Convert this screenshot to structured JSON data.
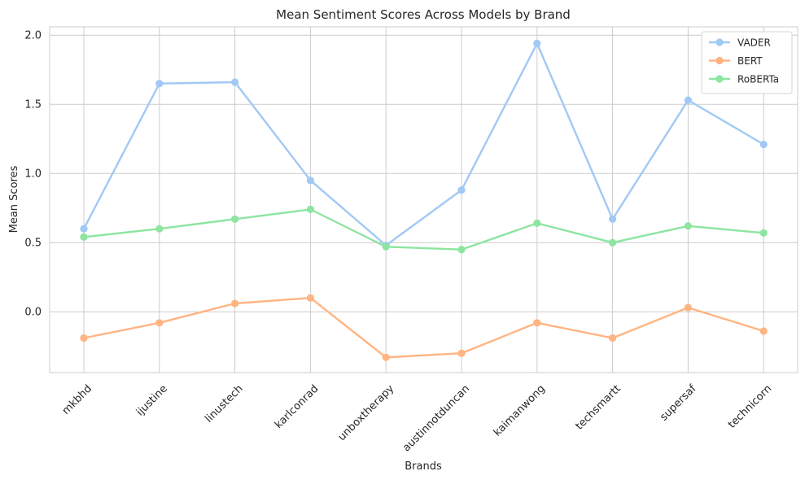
{
  "chart_data": {
    "type": "line",
    "title": "Mean Sentiment Scores Across Models by Brand",
    "xlabel": "Brands",
    "ylabel": "Mean Scores",
    "categories": [
      "mkbhd",
      "ijustine",
      "linustech",
      "karlconrad",
      "unboxtherapy",
      "austinnotduncan",
      "kaimanwong",
      "techsmartt",
      "supersaf",
      "technicorn"
    ],
    "ylim": [
      -0.44,
      2.06
    ],
    "yticks": [
      "0.0",
      "0.5",
      "1.0",
      "1.5",
      "2.0"
    ],
    "grid": true,
    "legend_position": "top-right",
    "series": [
      {
        "name": "VADER",
        "color": "#a1c9f4",
        "values": [
          0.6,
          1.65,
          1.66,
          0.95,
          0.48,
          0.88,
          1.94,
          0.67,
          1.53,
          1.21
        ]
      },
      {
        "name": "BERT",
        "color": "#ffb482",
        "values": [
          -0.19,
          -0.08,
          0.06,
          0.1,
          -0.33,
          -0.3,
          -0.08,
          -0.19,
          0.03,
          -0.14
        ]
      },
      {
        "name": "RoBERTa",
        "color": "#8de5a1",
        "values": [
          0.54,
          0.6,
          0.67,
          0.74,
          0.47,
          0.45,
          0.64,
          0.5,
          0.62,
          0.57
        ]
      }
    ]
  }
}
